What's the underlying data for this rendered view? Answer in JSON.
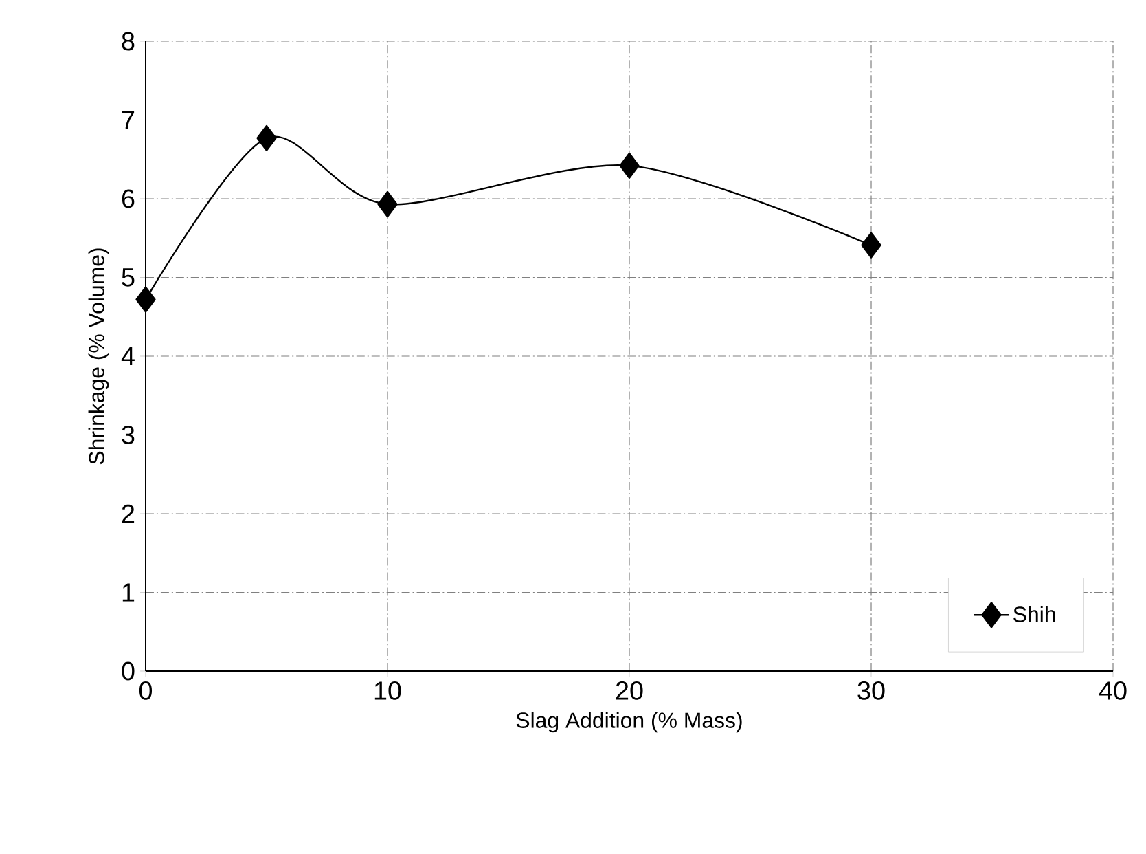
{
  "chart_data": {
    "type": "line",
    "xlabel": "Slag Addition (% Mass)",
    "ylabel": "Shrinkage (% Volume)",
    "x": [
      0,
      5,
      10,
      20,
      30
    ],
    "series": [
      {
        "name": "Shih",
        "color": "#000000",
        "values": [
          4.72,
          6.77,
          5.93,
          6.42,
          5.41
        ]
      }
    ],
    "xlim": [
      0,
      40
    ],
    "xticks": [
      0,
      10,
      20,
      30,
      40
    ],
    "ylim": [
      0,
      8
    ],
    "yticks": [
      0,
      1,
      2,
      3,
      4,
      5,
      6,
      7,
      8
    ],
    "grid": true,
    "legend": "bottom right",
    "marker": "diamond",
    "line_style": "solid"
  }
}
